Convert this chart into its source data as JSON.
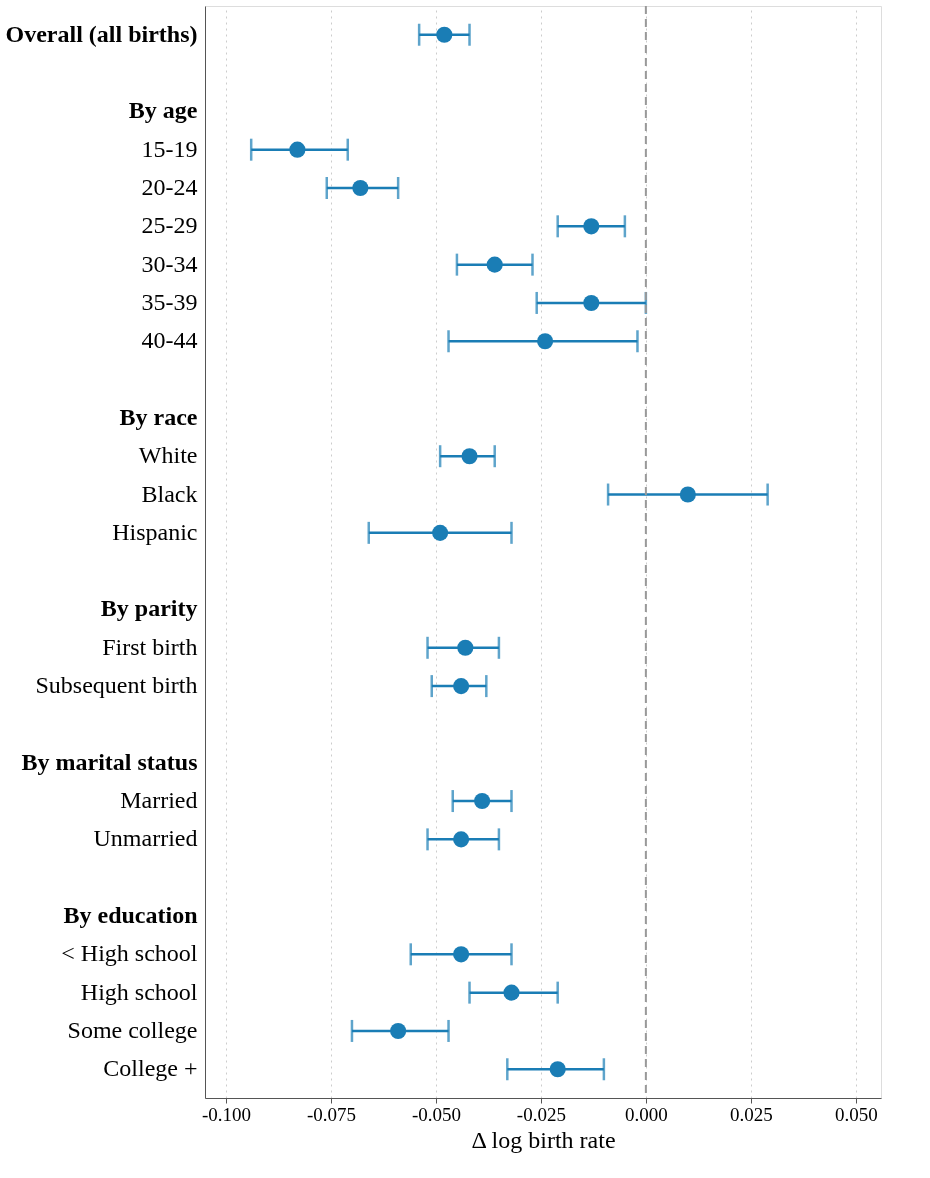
{
  "chart_data": {
    "type": "scatter",
    "orientation": "horizontal",
    "xlabel": "Δ log birth rate",
    "categories": [
      "Overall (all births)",
      null,
      "By age",
      "15-19",
      "20-24",
      "25-29",
      "30-34",
      "35-39",
      "40-44",
      null,
      "By race",
      "White",
      "Black",
      "Hispanic",
      null,
      "By parity",
      "First birth",
      "Subsequent birth",
      null,
      "By marital status",
      "Married",
      "Unmarried",
      null,
      "By education",
      "< High school",
      "High school",
      "Some college",
      "College +"
    ],
    "series": [
      {
        "color": "#1a7db5",
        "values": [
          -0.048,
          null,
          null,
          -0.083,
          -0.068,
          -0.013,
          -0.036,
          -0.013,
          -0.024,
          null,
          null,
          -0.042,
          0.01,
          -0.049,
          null,
          null,
          -0.043,
          -0.044,
          null,
          null,
          -0.039,
          -0.044,
          null,
          null,
          -0.044,
          -0.032,
          -0.059,
          -0.021
        ],
        "errors": [
          [
            -0.054,
            -0.042
          ],
          null,
          null,
          [
            -0.094,
            -0.071
          ],
          [
            -0.076,
            -0.059
          ],
          [
            -0.021,
            -0.005
          ],
          [
            -0.045,
            -0.027
          ],
          [
            -0.026,
            0.0
          ],
          [
            -0.047,
            -0.002
          ],
          null,
          null,
          [
            -0.049,
            -0.036
          ],
          [
            -0.009,
            0.029
          ],
          [
            -0.066,
            -0.032
          ],
          null,
          null,
          [
            -0.052,
            -0.035
          ],
          [
            -0.051,
            -0.038
          ],
          null,
          null,
          [
            -0.046,
            -0.032
          ],
          [
            -0.052,
            -0.035
          ],
          null,
          null,
          [
            -0.056,
            -0.032
          ],
          [
            -0.042,
            -0.021
          ],
          [
            -0.07,
            -0.047
          ],
          [
            -0.033,
            -0.01
          ]
        ]
      }
    ],
    "xlim": [
      -0.105,
      0.056
    ],
    "xticks": [
      {
        "value": -0.1,
        "label": "-0.100"
      },
      {
        "value": -0.075,
        "label": "-0.075"
      },
      {
        "value": -0.05,
        "label": "-0.050"
      },
      {
        "value": -0.025,
        "label": "-0.025"
      },
      {
        "value": 0,
        "label": "0.000"
      },
      {
        "value": 0.025,
        "label": "0.025"
      },
      {
        "value": 0.05,
        "label": "0.050"
      }
    ],
    "grid": "x",
    "marker": "circle",
    "ref_lines": [
      {
        "axis": "x",
        "value": 0,
        "color": "#999999",
        "line_style": "dashed"
      }
    ]
  }
}
